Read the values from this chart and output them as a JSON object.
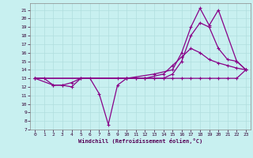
{
  "xlabel": "Windchill (Refroidissement éolien,°C)",
  "bg_color": "#c8f0f0",
  "grid_color": "#b0dede",
  "line_color": "#880088",
  "xlim": [
    -0.5,
    23.5
  ],
  "ylim": [
    7,
    21.8
  ],
  "xticks": [
    0,
    1,
    2,
    3,
    4,
    5,
    6,
    7,
    8,
    9,
    10,
    11,
    12,
    13,
    14,
    15,
    16,
    17,
    18,
    19,
    20,
    21,
    22,
    23
  ],
  "yticks": [
    7,
    8,
    9,
    10,
    11,
    12,
    13,
    14,
    15,
    16,
    17,
    18,
    19,
    20,
    21
  ],
  "lines": [
    {
      "x": [
        0,
        1,
        2,
        3,
        4,
        5,
        6,
        7,
        8,
        9,
        10,
        11,
        12,
        13,
        14,
        15,
        16,
        17,
        18,
        19,
        20,
        21,
        22,
        23
      ],
      "y": [
        13,
        13,
        12.2,
        12.2,
        12,
        13,
        13,
        11.2,
        7.6,
        12.2,
        13,
        13,
        13,
        13,
        13,
        13,
        13,
        13,
        13,
        13,
        13,
        13,
        13,
        14
      ]
    },
    {
      "x": [
        0,
        2,
        3,
        4,
        5,
        9,
        10,
        11,
        12,
        14,
        15,
        16,
        17,
        18,
        19,
        20,
        21,
        22,
        23
      ],
      "y": [
        13,
        12.2,
        12.2,
        12.5,
        13,
        13,
        13,
        13,
        13,
        13.5,
        14.5,
        15.5,
        16.5,
        16,
        15.2,
        14.8,
        14.5,
        14.2,
        14
      ]
    },
    {
      "x": [
        0,
        10,
        12,
        13,
        14,
        15,
        16,
        17,
        18,
        19,
        20,
        21,
        22,
        23
      ],
      "y": [
        13,
        13,
        13,
        13,
        13,
        13.5,
        15,
        18,
        19.5,
        19,
        16.5,
        15.2,
        15,
        14
      ]
    },
    {
      "x": [
        0,
        10,
        13,
        15,
        16,
        17,
        18,
        19,
        20,
        22,
        23
      ],
      "y": [
        13,
        13,
        13.5,
        14,
        16,
        19,
        21.2,
        19.2,
        21,
        15,
        14
      ]
    }
  ]
}
